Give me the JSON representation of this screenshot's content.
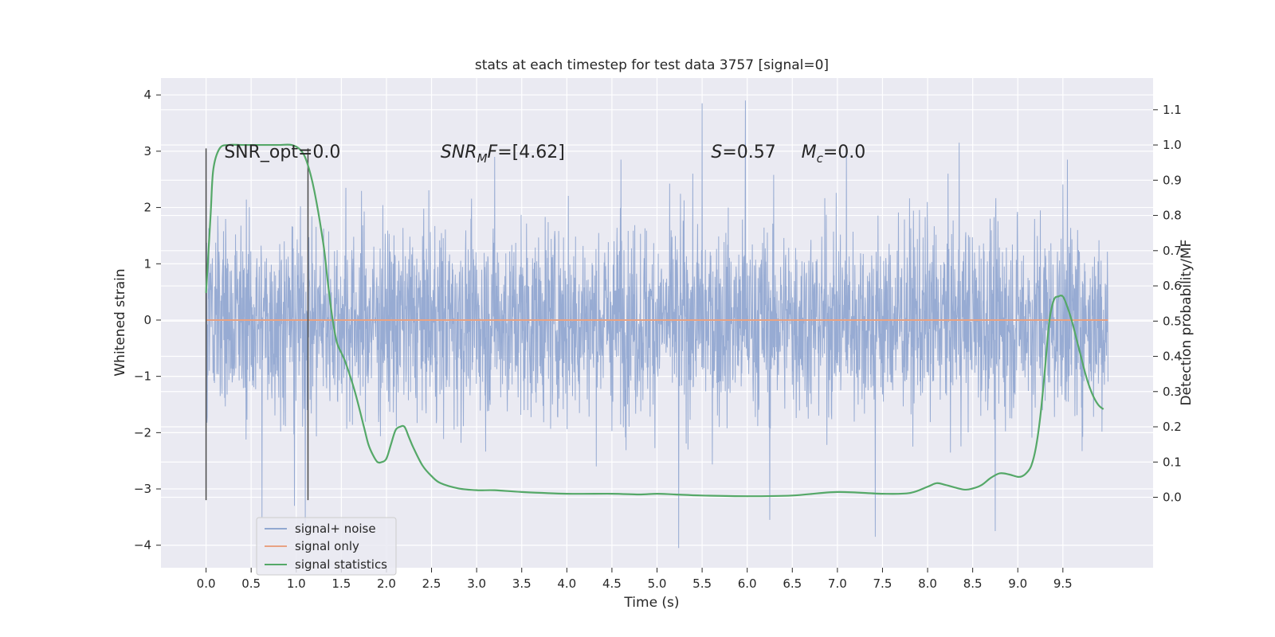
{
  "chart_data": {
    "type": "line",
    "title": "stats at each timestep for test data 3757 [signal=0]",
    "xlabel": "Time (s)",
    "ylabel_left": "Whitened strain",
    "ylabel_right": "Detection probability/MF",
    "xlim": [
      -0.5,
      10.5
    ],
    "ylim_left": [
      -4.4,
      4.3
    ],
    "ylim_right": [
      -0.2,
      1.19
    ],
    "x_ticks": [
      "0.0",
      "0.5",
      "1.0",
      "1.5",
      "2.0",
      "2.5",
      "3.0",
      "3.5",
      "4.0",
      "4.5",
      "5.0",
      "5.5",
      "6.0",
      "6.5",
      "7.0",
      "7.5",
      "8.0",
      "8.5",
      "9.0",
      "9.5"
    ],
    "y_ticks_left": [
      "4",
      "3",
      "2",
      "1",
      "0",
      "−1",
      "−2",
      "−3",
      "−4"
    ],
    "y_ticks_right": [
      "1.1",
      "1.0",
      "0.9",
      "0.8",
      "0.7",
      "0.6",
      "0.5",
      "0.4",
      "0.3",
      "0.2",
      "0.1",
      "0.0"
    ],
    "grid": true,
    "legend_position": "lower-left",
    "annotations": [
      {
        "prefix": "SNR_opt=0.0",
        "sub": "",
        "suffix": "",
        "x": 0.2,
        "y": 3.0
      },
      {
        "prefix": "SNR",
        "sub": "M",
        "suffix": "F=[4.62]",
        "italic": true,
        "x": 2.6,
        "y": 3.0
      },
      {
        "prefix": "S",
        "sub": "",
        "suffix": "=0.57",
        "italic": true,
        "x": 5.6,
        "y": 3.0
      },
      {
        "prefix": "M",
        "sub": "c",
        "suffix": "=0.0",
        "italic": true,
        "x": 6.6,
        "y": 3.0
      }
    ],
    "vlines": [
      {
        "x": 0.0,
        "y0": -3.2,
        "y1": 3.05
      },
      {
        "x": 1.13,
        "y0": -3.2,
        "y1": 3.05
      }
    ],
    "series": [
      {
        "name": "signal+ noise",
        "color": "#92a8d1",
        "axis": "left",
        "x_start": 0.0,
        "x_end": 10.0,
        "typical_std": 1.0,
        "peaks": [
          {
            "x": 0.0,
            "y": 2.45
          },
          {
            "x": 0.62,
            "y": -3.5
          },
          {
            "x": 0.98,
            "y": -3.3
          },
          {
            "x": 1.1,
            "y": -3.6
          },
          {
            "x": 1.55,
            "y": 2.35
          },
          {
            "x": 3.2,
            "y": 2.9
          },
          {
            "x": 4.6,
            "y": 2.85
          },
          {
            "x": 5.24,
            "y": -4.05
          },
          {
            "x": 5.5,
            "y": 3.85
          },
          {
            "x": 5.98,
            "y": 3.9
          },
          {
            "x": 6.25,
            "y": -3.55
          },
          {
            "x": 7.1,
            "y": 3.1
          },
          {
            "x": 7.42,
            "y": -3.85
          },
          {
            "x": 8.35,
            "y": 3.15
          },
          {
            "x": 8.75,
            "y": -3.75
          },
          {
            "x": 9.55,
            "y": 2.85
          }
        ]
      },
      {
        "name": "signal only",
        "color": "#e8a283",
        "axis": "left",
        "x": [
          0.0,
          10.0
        ],
        "values": [
          0.0,
          0.0
        ]
      },
      {
        "name": "signal statistics",
        "color": "#55a868",
        "axis": "right",
        "x": [
          0.0,
          0.05,
          0.08,
          0.15,
          0.25,
          0.4,
          0.6,
          0.8,
          0.95,
          1.05,
          1.12,
          1.2,
          1.3,
          1.35,
          1.4,
          1.45,
          1.5,
          1.55,
          1.65,
          1.75,
          1.8,
          1.85,
          1.9,
          1.95,
          2.0,
          2.05,
          2.1,
          2.15,
          2.2,
          2.25,
          2.3,
          2.4,
          2.5,
          2.6,
          2.8,
          3.0,
          3.2,
          3.5,
          4.0,
          4.5,
          4.8,
          5.0,
          5.2,
          5.5,
          6.0,
          6.5,
          7.0,
          7.5,
          7.8,
          8.0,
          8.1,
          8.2,
          8.4,
          8.5,
          8.6,
          8.7,
          8.8,
          8.9,
          9.0,
          9.05,
          9.1,
          9.15,
          9.2,
          9.25,
          9.3,
          9.35,
          9.4,
          9.45,
          9.5,
          9.55,
          9.6,
          9.65,
          9.7,
          9.75,
          9.8,
          9.85,
          9.9,
          9.95
        ],
        "values": [
          0.58,
          0.8,
          0.93,
          0.99,
          1.0,
          1.0,
          1.0,
          1.0,
          1.0,
          0.985,
          0.95,
          0.87,
          0.72,
          0.61,
          0.51,
          0.44,
          0.41,
          0.38,
          0.3,
          0.2,
          0.15,
          0.12,
          0.1,
          0.1,
          0.11,
          0.15,
          0.19,
          0.2,
          0.2,
          0.17,
          0.14,
          0.09,
          0.06,
          0.04,
          0.025,
          0.02,
          0.02,
          0.015,
          0.01,
          0.01,
          0.008,
          0.01,
          0.008,
          0.005,
          0.003,
          0.005,
          0.015,
          0.01,
          0.012,
          0.03,
          0.04,
          0.035,
          0.022,
          0.025,
          0.035,
          0.055,
          0.068,
          0.065,
          0.058,
          0.06,
          0.07,
          0.09,
          0.14,
          0.23,
          0.36,
          0.5,
          0.56,
          0.57,
          0.57,
          0.54,
          0.5,
          0.45,
          0.4,
          0.35,
          0.31,
          0.28,
          0.26,
          0.25
        ]
      }
    ]
  }
}
